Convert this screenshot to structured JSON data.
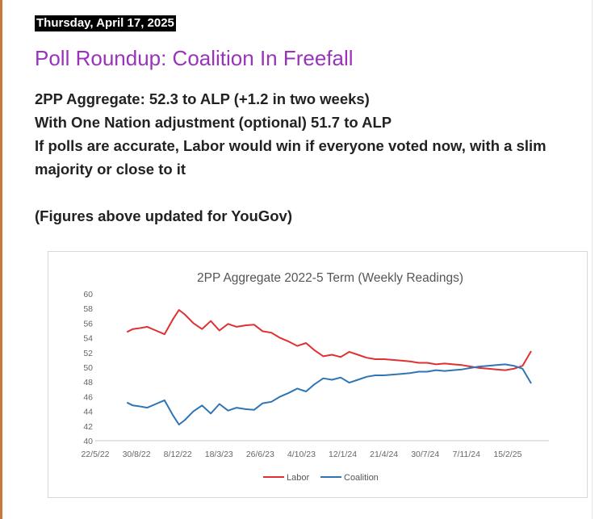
{
  "post": {
    "date": "Thursday, April 17, 2025",
    "title": "Poll Roundup: Coalition In Freefall",
    "lines": [
      "2PP Aggregate: 52.3 to ALP (+1.2 in two weeks)",
      "With One Nation adjustment (optional) 51.7 to ALP",
      "If polls are accurate, Labor would win if everyone voted now, with a slim majority or close to it",
      "(Figures above updated for YouGov)"
    ]
  },
  "chart_data": {
    "type": "line",
    "title": "2PP Aggregate 2022-5 Term (Weekly Readings)",
    "xlabel": "",
    "ylabel": "",
    "ylim": [
      40,
      60
    ],
    "yticks": [
      "60",
      "58",
      "56",
      "54",
      "52",
      "50",
      "48",
      "46",
      "44",
      "42",
      "40"
    ],
    "xtick_labels": [
      "22/5/22",
      "30/8/22",
      "8/12/22",
      "18/3/23",
      "26/6/23",
      "4/10/23",
      "12/1/24",
      "21/4/24",
      "30/7/24",
      "7/11/24",
      "15/2/25"
    ],
    "xlim": [
      "2022-05-22",
      "2025-05-26"
    ],
    "grid": false,
    "legend_position": "bottom",
    "colors": {
      "Labor": "#e03030",
      "Coalition": "#2e75b6"
    },
    "x": [
      "2022-08-07",
      "2022-08-21",
      "2022-09-04",
      "2022-09-25",
      "2022-10-16",
      "2022-11-06",
      "2022-11-27",
      "2022-12-11",
      "2022-12-25",
      "2023-01-15",
      "2023-02-05",
      "2023-02-26",
      "2023-03-19",
      "2023-04-09",
      "2023-04-30",
      "2023-05-21",
      "2023-06-11",
      "2023-07-02",
      "2023-07-23",
      "2023-08-13",
      "2023-09-03",
      "2023-09-24",
      "2023-10-15",
      "2023-11-05",
      "2023-11-26",
      "2023-12-17",
      "2024-01-07",
      "2024-01-28",
      "2024-02-18",
      "2024-03-10",
      "2024-03-31",
      "2024-04-21",
      "2024-05-12",
      "2024-06-02",
      "2024-06-23",
      "2024-07-14",
      "2024-08-04",
      "2024-08-25",
      "2024-09-15",
      "2024-10-06",
      "2024-10-27",
      "2024-11-17",
      "2024-12-08",
      "2024-12-29",
      "2025-01-19",
      "2025-02-09",
      "2025-03-02",
      "2025-03-23",
      "2025-04-13"
    ],
    "series": [
      {
        "name": "Labor",
        "values": [
          54.8,
          55.2,
          55.3,
          55.5,
          55.0,
          54.5,
          56.6,
          57.8,
          57.2,
          56.0,
          55.2,
          56.3,
          55.0,
          55.9,
          55.5,
          55.7,
          55.8,
          54.9,
          54.7,
          54.0,
          53.5,
          52.9,
          53.3,
          52.3,
          51.5,
          51.7,
          51.4,
          52.1,
          51.7,
          51.3,
          51.1,
          51.1,
          51.0,
          50.9,
          50.8,
          50.6,
          50.6,
          50.4,
          50.5,
          50.4,
          50.3,
          50.1,
          49.9,
          49.8,
          49.7,
          49.6,
          49.8,
          50.2,
          52.2
        ]
      },
      {
        "name": "Coalition",
        "values": [
          45.2,
          44.8,
          44.7,
          44.5,
          45.0,
          45.5,
          43.4,
          42.2,
          42.8,
          44.0,
          44.8,
          43.7,
          45.0,
          44.1,
          44.5,
          44.3,
          44.2,
          45.1,
          45.3,
          46.0,
          46.5,
          47.1,
          46.7,
          47.7,
          48.5,
          48.3,
          48.6,
          47.9,
          48.3,
          48.7,
          48.9,
          48.9,
          49.0,
          49.1,
          49.2,
          49.4,
          49.4,
          49.6,
          49.5,
          49.6,
          49.7,
          49.9,
          50.1,
          50.2,
          50.3,
          50.4,
          50.2,
          49.8,
          47.8
        ]
      }
    ]
  }
}
